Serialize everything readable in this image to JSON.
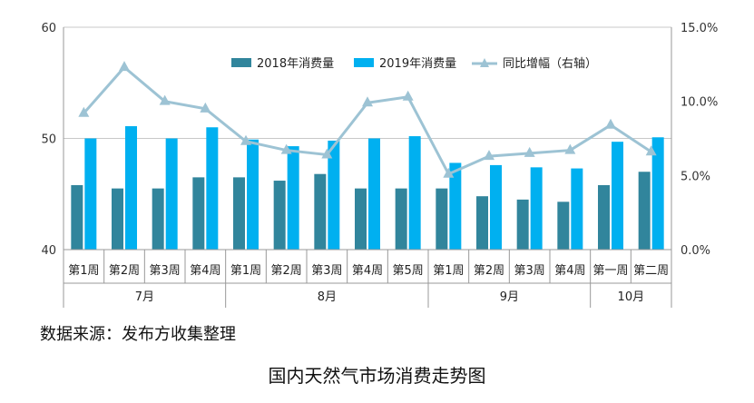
{
  "chart_data": {
    "type": "bar",
    "title": "国内天然气市场消费走势图",
    "source": "数据来源：发布方收集整理",
    "categories": [
      "第1周",
      "第2周",
      "第3周",
      "第4周",
      "第1周",
      "第2周",
      "第3周",
      "第4周",
      "第5周",
      "第1周",
      "第2周",
      "第3周",
      "第4周",
      "第一周",
      "第二周"
    ],
    "groups": [
      {
        "label": "7月",
        "count": 4
      },
      {
        "label": "8月",
        "count": 5
      },
      {
        "label": "9月",
        "count": 4
      },
      {
        "label": "10月",
        "count": 2
      }
    ],
    "series": [
      {
        "name": "2018年消费量",
        "type": "bar",
        "axis": "left",
        "color": "#31859C",
        "values": [
          45.8,
          45.5,
          45.5,
          46.5,
          46.5,
          46.2,
          46.8,
          45.5,
          45.5,
          45.5,
          44.8,
          44.5,
          44.3,
          45.8,
          47.0
        ]
      },
      {
        "name": "2019年消费量",
        "type": "bar",
        "axis": "left",
        "color": "#00B0F0",
        "values": [
          50.0,
          51.1,
          50.0,
          51.0,
          49.9,
          49.3,
          49.8,
          50.0,
          50.2,
          47.8,
          47.6,
          47.4,
          47.3,
          49.7,
          50.1
        ]
      },
      {
        "name": "同比增幅（右轴）",
        "type": "line",
        "axis": "right",
        "color": "#9DC3D4",
        "values": [
          9.2,
          12.3,
          10.0,
          9.5,
          7.3,
          6.7,
          6.4,
          9.9,
          10.3,
          5.1,
          6.3,
          6.5,
          6.7,
          8.4,
          6.6
        ]
      }
    ],
    "y_left": {
      "min": 40,
      "max": 60,
      "ticks": [
        "40",
        "50",
        "60"
      ]
    },
    "y_right": {
      "min": 0,
      "max": 15,
      "ticks": [
        "0.0%",
        "5.0%",
        "10.0%",
        "15.0%"
      ]
    },
    "grid": "major horizontal at left-axis ticks",
    "legend_position": "top-center"
  }
}
